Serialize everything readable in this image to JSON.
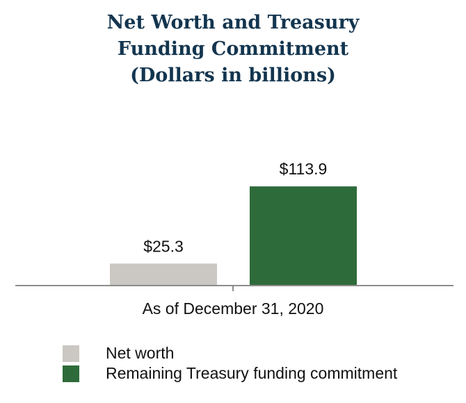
{
  "chart_data": {
    "type": "bar",
    "title_lines": [
      "Net Worth and Treasury",
      "Funding Commitment",
      "(Dollars in billions)"
    ],
    "categories": [
      "As of December 31, 2020"
    ],
    "series": [
      {
        "name": "Net worth",
        "values": [
          25.3
        ],
        "label": "$25.3",
        "color": "#cbc8c3"
      },
      {
        "name": "Remaining Treasury funding commitment",
        "values": [
          113.9
        ],
        "label": "$113.9",
        "color": "#2e6b3a"
      }
    ],
    "ylim": [
      0,
      150
    ],
    "grid": false,
    "y_axis_visible": false,
    "legend_placement": "bottom-left"
  }
}
